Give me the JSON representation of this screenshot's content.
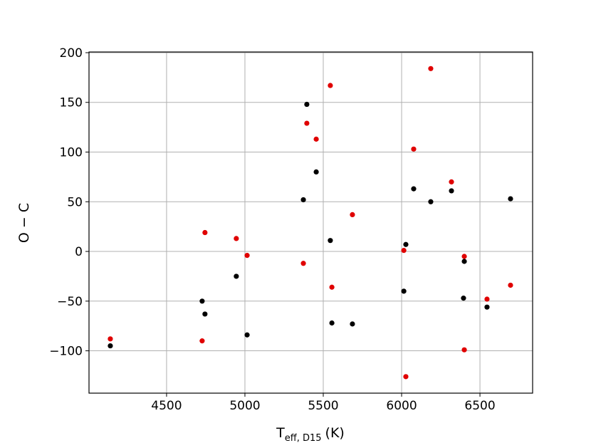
{
  "chart_data": {
    "type": "scatter",
    "xlabel": {
      "main": "T",
      "sub": "eff, D15",
      "unit": "(K)"
    },
    "ylabel": "O − C",
    "xlim": [
      4005,
      6836
    ],
    "ylim": [
      -142.6,
      200.7
    ],
    "xticks": [
      4500,
      5000,
      5500,
      6000,
      6500
    ],
    "yticks": [
      {
        "value": -100,
        "label": "−100"
      },
      {
        "value": -50,
        "label": "−50"
      },
      0,
      50,
      100,
      150,
      200
    ],
    "grid": true,
    "series": [
      {
        "color": "#000000",
        "x": [
          4141,
          4727,
          4745,
          4945,
          5014,
          5373,
          5395,
          5455,
          5545,
          5555,
          5686,
          6014,
          6027,
          6077,
          6186,
          6318,
          6400,
          6395,
          6545,
          6695
        ],
        "values": [
          -95,
          -50,
          -63,
          -25,
          -84,
          52,
          148,
          80,
          11,
          -72,
          -73,
          -40,
          7,
          63,
          50,
          61,
          -10,
          -47,
          -56,
          53
        ]
      },
      {
        "color": "#e00000",
        "x": [
          4141,
          4727,
          4745,
          4945,
          5014,
          5373,
          5395,
          5455,
          5545,
          5555,
          5686,
          6014,
          6027,
          6077,
          6186,
          6318,
          6400,
          6400,
          6545,
          6695
        ],
        "values": [
          -88,
          -90,
          19,
          13,
          -4,
          -12,
          129,
          113,
          167,
          -36,
          37,
          1,
          -126,
          103,
          184,
          70,
          -5,
          -99,
          -48,
          -34
        ]
      }
    ]
  }
}
